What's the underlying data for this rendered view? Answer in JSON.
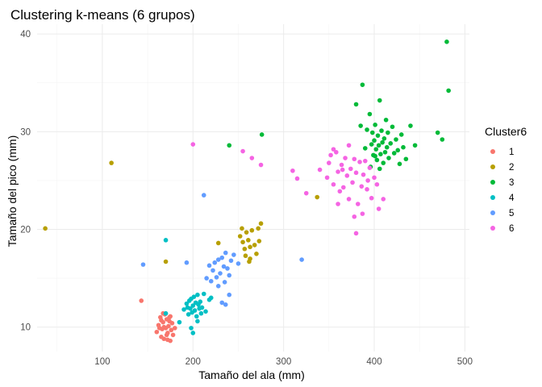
{
  "chart_data": {
    "type": "scatter",
    "title": "Clustering k-means (6 grupos)",
    "xlabel": "Tamaño del ala (mm)",
    "ylabel": "Tamaño del pico (mm)",
    "xlim": [
      28,
      505
    ],
    "ylim": [
      7.5,
      41
    ],
    "xticks": [
      100,
      200,
      300,
      400,
      500
    ],
    "yticks": [
      10,
      20,
      30,
      40
    ],
    "grid": true,
    "legend": {
      "title": "Cluster6",
      "placement": "right"
    },
    "series": [
      {
        "name": "1",
        "color": "#F8766D",
        "points": [
          [
            143,
            12.7
          ],
          [
            160,
            9.5
          ],
          [
            162,
            10.2
          ],
          [
            164,
            11.0
          ],
          [
            165,
            9.0
          ],
          [
            166,
            9.8
          ],
          [
            167,
            10.5
          ],
          [
            168,
            8.8
          ],
          [
            169,
            11.3
          ],
          [
            170,
            9.9
          ],
          [
            171,
            10.8
          ],
          [
            172,
            9.4
          ],
          [
            173,
            10.1
          ],
          [
            174,
            11.0
          ],
          [
            175,
            8.6
          ],
          [
            176,
            9.7
          ],
          [
            177,
            10.4
          ],
          [
            178,
            9.2
          ],
          [
            180,
            9.9
          ],
          [
            168,
            10.0
          ],
          [
            165,
            10.7
          ],
          [
            171,
            9.2
          ],
          [
            174,
            10.6
          ],
          [
            163,
            9.9
          ],
          [
            167,
            11.4
          ],
          [
            175,
            11.1
          ],
          [
            172,
            8.7
          ]
        ]
      },
      {
        "name": "2",
        "color": "#B79F00",
        "points": [
          [
            37,
            20.1
          ],
          [
            110,
            26.8
          ],
          [
            170,
            16.7
          ],
          [
            228,
            18.6
          ],
          [
            252,
            19.3
          ],
          [
            255,
            18.7
          ],
          [
            257,
            18.0
          ],
          [
            258,
            17.3
          ],
          [
            259,
            19.7
          ],
          [
            261,
            18.9
          ],
          [
            263,
            18.2
          ],
          [
            263,
            17.0
          ],
          [
            265,
            19.9
          ],
          [
            268,
            18.4
          ],
          [
            270,
            17.5
          ],
          [
            272,
            20.1
          ],
          [
            273,
            18.8
          ],
          [
            275,
            20.6
          ],
          [
            262,
            16.7
          ],
          [
            254,
            20.1
          ],
          [
            337,
            23.3
          ]
        ]
      },
      {
        "name": "3",
        "color": "#00BA38",
        "points": [
          [
            240,
            28.6
          ],
          [
            276,
            29.7
          ],
          [
            380,
            32.8
          ],
          [
            387,
            34.8
          ],
          [
            392,
            30.2
          ],
          [
            395,
            31.8
          ],
          [
            397,
            28.7
          ],
          [
            399,
            27.6
          ],
          [
            400,
            29.1
          ],
          [
            401,
            30.7
          ],
          [
            402,
            28.2
          ],
          [
            403,
            27.1
          ],
          [
            404,
            29.6
          ],
          [
            405,
            28.6
          ],
          [
            406,
            33.2
          ],
          [
            407,
            27.7
          ],
          [
            408,
            30.1
          ],
          [
            409,
            28.9
          ],
          [
            410,
            26.8
          ],
          [
            411,
            29.3
          ],
          [
            412,
            27.9
          ],
          [
            413,
            31.2
          ],
          [
            414,
            28.4
          ],
          [
            415,
            29.9
          ],
          [
            416,
            27.3
          ],
          [
            418,
            28.8
          ],
          [
            420,
            30.5
          ],
          [
            422,
            27.8
          ],
          [
            424,
            29.2
          ],
          [
            426,
            28.1
          ],
          [
            428,
            26.7
          ],
          [
            430,
            29.7
          ],
          [
            432,
            28.4
          ],
          [
            435,
            27.2
          ],
          [
            440,
            30.6
          ],
          [
            445,
            28.6
          ],
          [
            470,
            29.9
          ],
          [
            475,
            29.2
          ],
          [
            480,
            39.2
          ],
          [
            482,
            34.2
          ],
          [
            398,
            29.9
          ],
          [
            396,
            26.4
          ],
          [
            406,
            26.2
          ],
          [
            401,
            27.5
          ],
          [
            390,
            28.3
          ],
          [
            385,
            30.6
          ]
        ]
      },
      {
        "name": "4",
        "color": "#00BFC4",
        "points": [
          [
            170,
            18.9
          ],
          [
            170,
            11.4
          ],
          [
            185,
            10.5
          ],
          [
            190,
            11.8
          ],
          [
            193,
            12.4
          ],
          [
            195,
            11.3
          ],
          [
            196,
            12.7
          ],
          [
            197,
            11.9
          ],
          [
            198,
            12.9
          ],
          [
            199,
            11.5
          ],
          [
            200,
            12.2
          ],
          [
            201,
            13.1
          ],
          [
            202,
            11.7
          ],
          [
            203,
            12.5
          ],
          [
            204,
            11.1
          ],
          [
            205,
            13.3
          ],
          [
            206,
            12.3
          ],
          [
            207,
            11.9
          ],
          [
            208,
            12.6
          ],
          [
            210,
            12.0
          ],
          [
            212,
            13.4
          ],
          [
            214,
            11.6
          ],
          [
            218,
            12.8
          ],
          [
            220,
            13.0
          ],
          [
            200,
            9.4
          ],
          [
            205,
            10.6
          ],
          [
            198,
            9.9
          ],
          [
            194,
            12.0
          ],
          [
            209,
            11.4
          ]
        ]
      },
      {
        "name": "5",
        "color": "#619CFF",
        "points": [
          [
            145,
            16.4
          ],
          [
            193,
            16.6
          ],
          [
            212,
            23.5
          ],
          [
            215,
            15.0
          ],
          [
            218,
            16.3
          ],
          [
            220,
            14.7
          ],
          [
            222,
            15.8
          ],
          [
            224,
            16.6
          ],
          [
            226,
            15.1
          ],
          [
            228,
            16.9
          ],
          [
            230,
            15.5
          ],
          [
            232,
            17.1
          ],
          [
            234,
            16.2
          ],
          [
            235,
            14.6
          ],
          [
            236,
            17.6
          ],
          [
            238,
            16.0
          ],
          [
            240,
            15.3
          ],
          [
            242,
            16.8
          ],
          [
            245,
            17.4
          ],
          [
            250,
            16.5
          ],
          [
            232,
            12.5
          ],
          [
            236,
            12.3
          ],
          [
            240,
            13.3
          ],
          [
            320,
            16.9
          ],
          [
            228,
            14.2
          ]
        ]
      },
      {
        "name": "6",
        "color": "#F564E3",
        "points": [
          [
            200,
            28.7
          ],
          [
            255,
            28.0
          ],
          [
            265,
            27.3
          ],
          [
            275,
            26.6
          ],
          [
            310,
            26.0
          ],
          [
            315,
            25.2
          ],
          [
            325,
            23.7
          ],
          [
            340,
            26.1
          ],
          [
            348,
            25.3
          ],
          [
            350,
            26.8
          ],
          [
            352,
            27.6
          ],
          [
            355,
            24.6
          ],
          [
            358,
            27.9
          ],
          [
            360,
            25.9
          ],
          [
            362,
            23.9
          ],
          [
            364,
            26.6
          ],
          [
            366,
            24.3
          ],
          [
            368,
            27.3
          ],
          [
            370,
            25.5
          ],
          [
            372,
            23.1
          ],
          [
            374,
            26.2
          ],
          [
            376,
            24.8
          ],
          [
            378,
            27.2
          ],
          [
            380,
            25.8
          ],
          [
            382,
            22.6
          ],
          [
            384,
            26.9
          ],
          [
            386,
            24.4
          ],
          [
            388,
            25.6
          ],
          [
            390,
            27.0
          ],
          [
            392,
            24.1
          ],
          [
            395,
            26.3
          ],
          [
            397,
            23.2
          ],
          [
            400,
            25.3
          ],
          [
            403,
            24.6
          ],
          [
            355,
            28.2
          ],
          [
            372,
            28.6
          ],
          [
            387,
            21.6
          ],
          [
            405,
            22.1
          ],
          [
            410,
            23.1
          ],
          [
            378,
            21.3
          ],
          [
            360,
            22.6
          ],
          [
            380,
            19.6
          ],
          [
            365,
            26.1
          ],
          [
            393,
            25.0
          ]
        ]
      }
    ]
  }
}
